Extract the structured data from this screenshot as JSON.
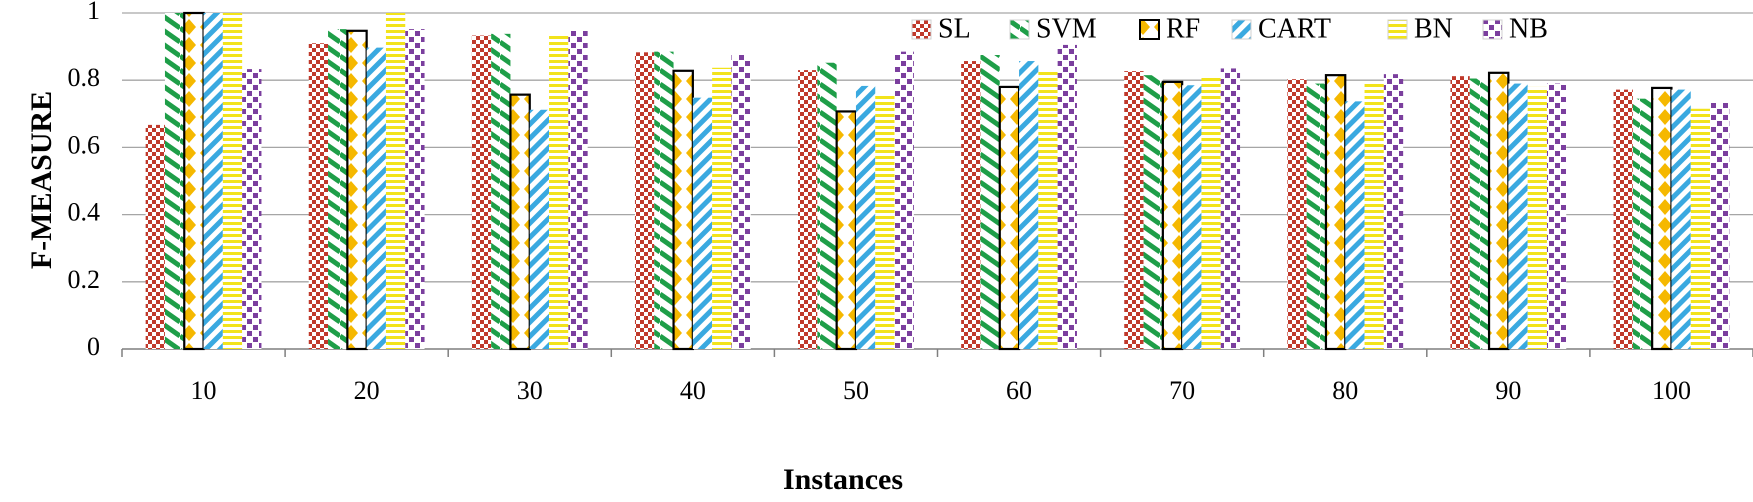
{
  "chart_data": {
    "type": "bar",
    "ylabel": "F-MEASURE",
    "xlabel": "Instances",
    "ylim": [
      0,
      1
    ],
    "yticks": [
      "0",
      "0.2",
      "0.4",
      "0.6",
      "0.8",
      "1"
    ],
    "grid": true,
    "legend_position": "top-right",
    "categories": [
      "10",
      "20",
      "30",
      "40",
      "50",
      "60",
      "70",
      "80",
      "90",
      "100"
    ],
    "series": [
      {
        "name": "SL",
        "color": "#c0392b",
        "pattern": "checker",
        "values": [
          0.667,
          0.91,
          0.933,
          0.883,
          0.83,
          0.857,
          0.827,
          0.803,
          0.812,
          0.772
        ]
      },
      {
        "name": "SVM",
        "color": "#1e9e48",
        "pattern": "zigzag",
        "values": [
          1.0,
          0.952,
          0.938,
          0.885,
          0.852,
          0.875,
          0.815,
          0.79,
          0.805,
          0.745
        ]
      },
      {
        "name": "RF",
        "color": "#f5b800",
        "pattern": "diamond",
        "values": [
          1.0,
          0.947,
          0.757,
          0.828,
          0.707,
          0.78,
          0.795,
          0.815,
          0.822,
          0.777
        ]
      },
      {
        "name": "CART",
        "color": "#3aa9e0",
        "pattern": "diagonal",
        "values": [
          1.0,
          0.897,
          0.712,
          0.748,
          0.783,
          0.857,
          0.785,
          0.737,
          0.79,
          0.772
        ]
      },
      {
        "name": "BN",
        "color": "#f2e31b",
        "pattern": "hlines",
        "values": [
          1.0,
          1.0,
          0.933,
          0.837,
          0.76,
          0.825,
          0.815,
          0.797,
          0.78,
          0.715
        ]
      },
      {
        "name": "NB",
        "color": "#7b3f9e",
        "pattern": "squares",
        "values": [
          0.833,
          0.952,
          0.947,
          0.878,
          0.885,
          0.905,
          0.835,
          0.818,
          0.79,
          0.735
        ]
      }
    ]
  }
}
